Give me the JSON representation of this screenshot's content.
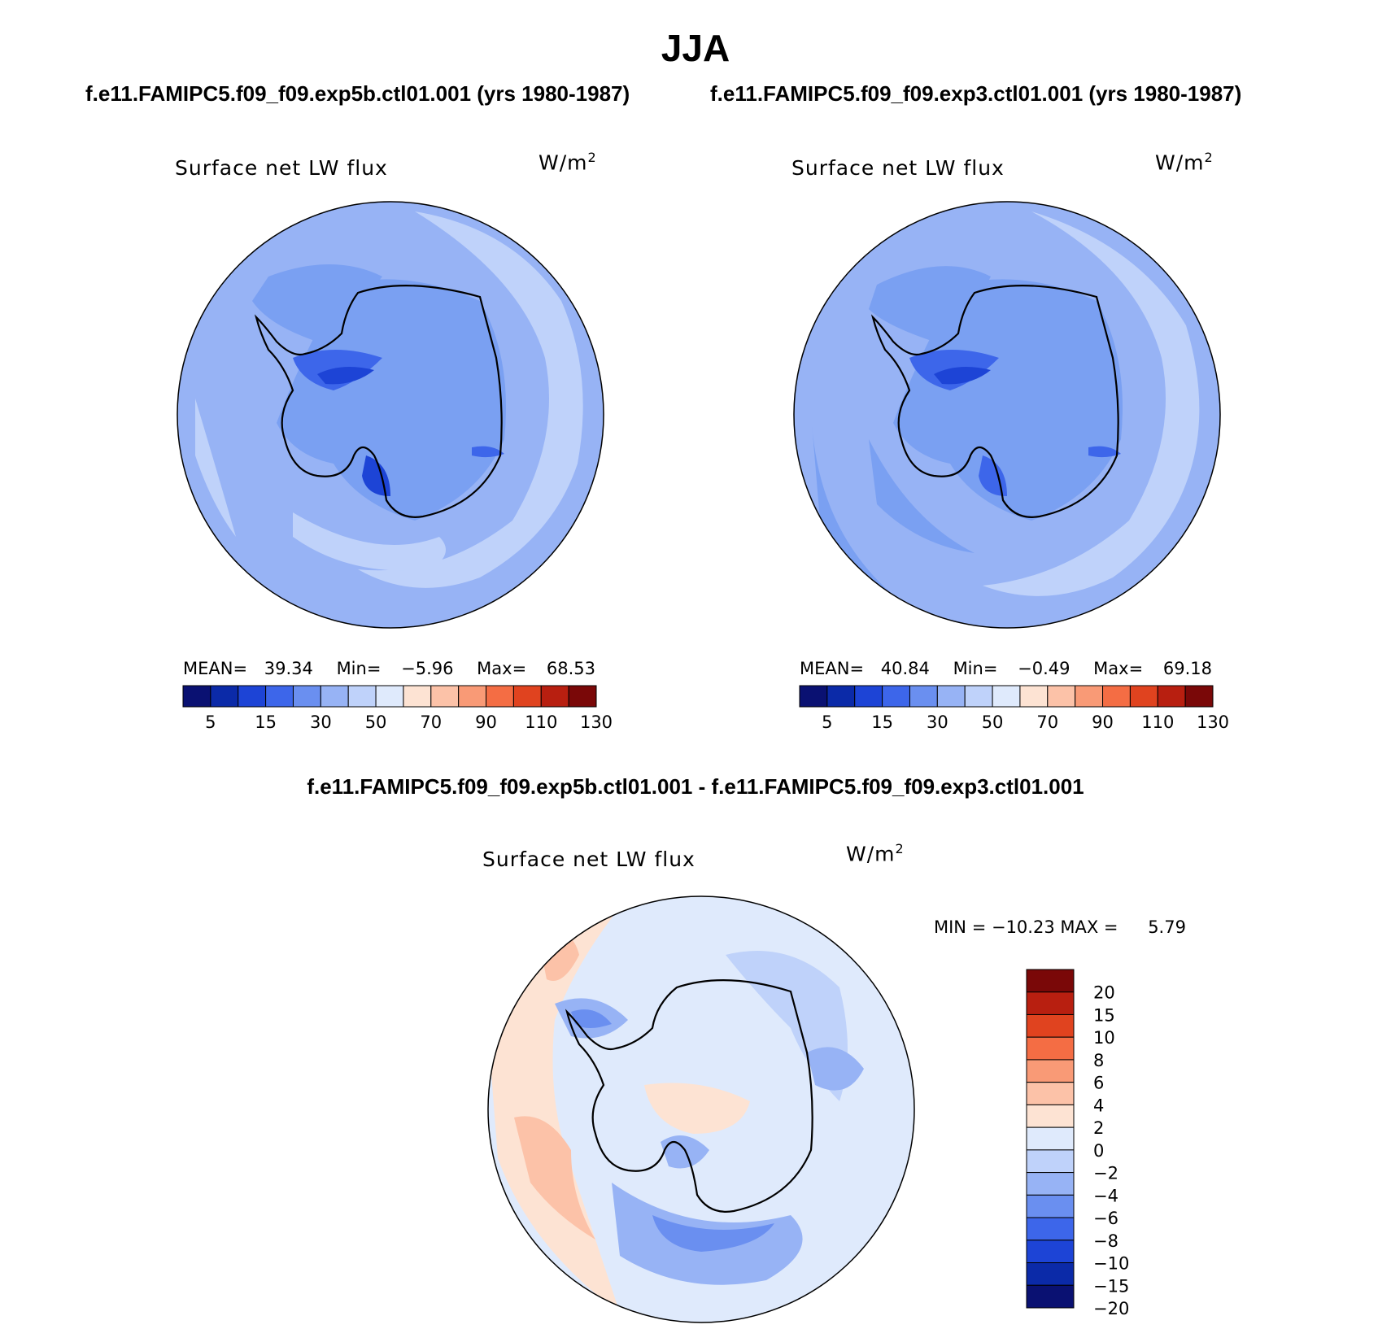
{
  "season": "JJA",
  "case_titles": {
    "left": "f.e11.FAMIPC5.f09_f09.exp5b.ctl01.001 (yrs 1980-1987)",
    "right": "f.e11.FAMIPC5.f09_f09.exp3.ctl01.001 (yrs 1980-1987)",
    "diff": "f.e11.FAMIPC5.f09_f09.exp5b.ctl01.001 - f.e11.FAMIPC5.f09_f09.exp3.ctl01.001"
  },
  "panels": [
    {
      "variable": "Surface net LW flux",
      "units_base": "W/m",
      "units_exp": "2",
      "mean_label": "MEAN=",
      "mean": "39.34",
      "min_label": "Min=",
      "min": "−5.96",
      "max_label": "Max=",
      "max": "68.53"
    },
    {
      "variable": "Surface net LW flux",
      "units_base": "W/m",
      "units_exp": "2",
      "mean_label": "MEAN=",
      "mean": "40.84",
      "min_label": "Min=",
      "min": "−0.49",
      "max_label": "Max=",
      "max": "69.18"
    },
    {
      "variable": "Surface net LW flux",
      "units_base": "W/m",
      "units_exp": "2",
      "minmax_text": "MIN = −10.23 MAX =",
      "max_value": "5.79"
    }
  ],
  "abs_colorbar": {
    "labels": [
      "5",
      "15",
      "30",
      "50",
      "70",
      "90",
      "110",
      "130"
    ],
    "colors": [
      "#0a1172",
      "#0b2aa8",
      "#1d44d6",
      "#3d66ea",
      "#6a8ff0",
      "#97b3f5",
      "#bfd2fa",
      "#dfeafc",
      "#fde3d3",
      "#fcc2a8",
      "#f99a76",
      "#f46d44",
      "#e0431f",
      "#b81f10",
      "#7a0808"
    ]
  },
  "diff_colorbar": {
    "labels": [
      "20",
      "15",
      "10",
      "8",
      "6",
      "4",
      "2",
      "0",
      "−2",
      "−4",
      "−6",
      "−8",
      "−10",
      "−15",
      "−20"
    ],
    "colors": [
      "#7a0808",
      "#b81f10",
      "#e0431f",
      "#f46d44",
      "#f99a76",
      "#fcc2a8",
      "#fde3d3",
      "#dfeafc",
      "#bfd2fa",
      "#97b3f5",
      "#6a8ff0",
      "#3d66ea",
      "#1d44d6",
      "#0b2aa8",
      "#0a1172"
    ]
  },
  "map_colors": {
    "abs_base": "#97b3f5",
    "abs_mid": "#7aa0f2",
    "abs_light": "#bfd2fa",
    "abs_dark": "#3d66ea",
    "abs_darker": "#1d44d6",
    "diff_base": "#dfeafc",
    "diff_blue": "#bfd2fa",
    "diff_blue2": "#97b3f5",
    "diff_blue3": "#6a8ff0",
    "diff_pink": "#fde3d3",
    "diff_salmon": "#fcc2a8",
    "coast": "#000000"
  }
}
